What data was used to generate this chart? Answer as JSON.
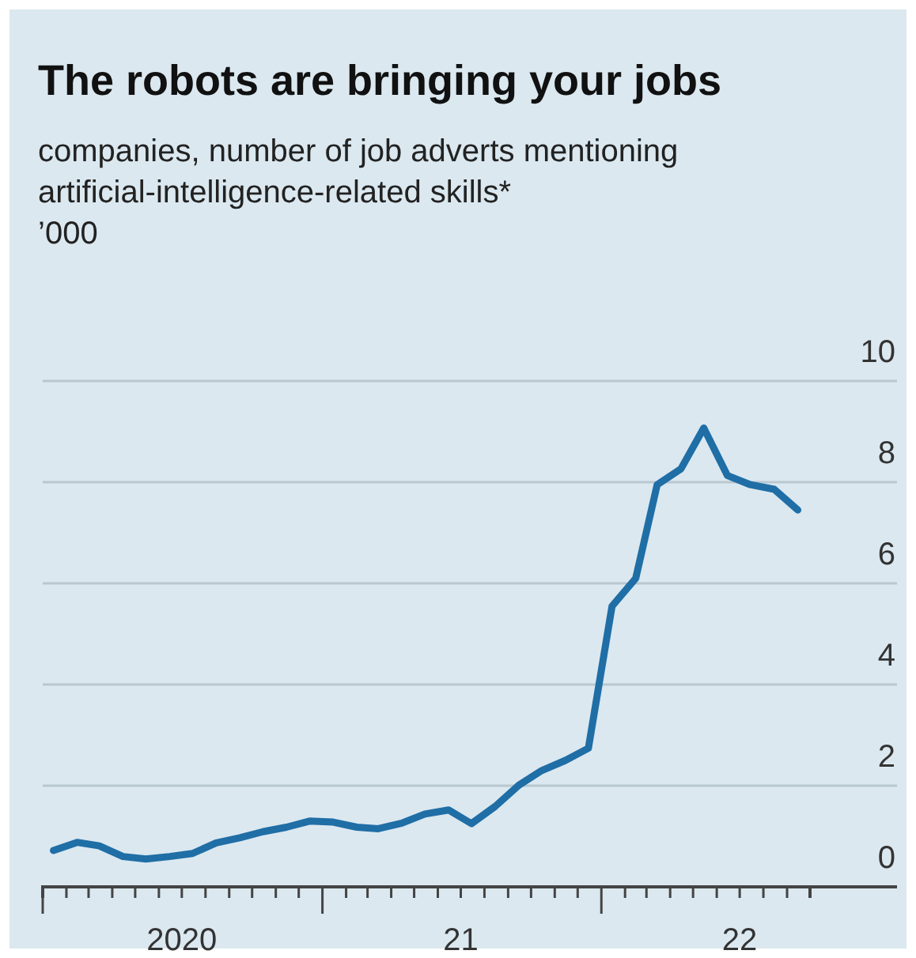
{
  "chart_data": {
    "type": "line",
    "title": "The robots are bringing your jobs",
    "subtitle": "companies, number of job adverts mentioning artificial-intelligence-related skills*",
    "ylabel": "’000",
    "x": [
      "2020-01-15",
      "2020-02-15",
      "2020-03-15",
      "2020-04-15",
      "2020-05-15",
      "2020-06-15",
      "2020-07-15",
      "2020-08-15",
      "2020-09-15",
      "2020-10-15",
      "2020-11-15",
      "2020-12-15",
      "2021-01-15",
      "2021-02-15",
      "2021-03-15",
      "2021-04-15",
      "2021-05-15",
      "2021-06-15",
      "2021-07-15",
      "2021-08-15",
      "2021-09-15",
      "2021-10-15",
      "2021-11-15",
      "2021-12-15",
      "2022-01-15",
      "2022-02-15",
      "2022-03-15",
      "2022-04-15",
      "2022-05-15",
      "2022-06-15",
      "2022-07-15",
      "2022-08-15",
      "2022-09-15"
    ],
    "series": [
      {
        "color": "#1f6ea6",
        "values": [
          0.72,
          0.88,
          0.81,
          0.6,
          0.55,
          0.6,
          0.66,
          0.87,
          0.97,
          1.09,
          1.18,
          1.3,
          1.28,
          1.18,
          1.15,
          1.26,
          1.44,
          1.52,
          1.25,
          1.59,
          2.01,
          2.3,
          2.5,
          2.74,
          5.55,
          6.1,
          7.95,
          8.26,
          9.07,
          8.13,
          7.95,
          7.86,
          7.45
        ]
      }
    ],
    "ylim": [
      0,
      10
    ],
    "yticks": [
      0,
      2,
      4,
      6,
      8,
      10
    ],
    "xlim": [
      "2020-01-01",
      "2022-10-01"
    ],
    "xticks": [
      {
        "value": "2020-01-01",
        "label": null
      },
      {
        "value": "2020-02-01",
        "label": null
      },
      {
        "value": "2020-03-01",
        "label": null
      },
      {
        "value": "2020-04-01",
        "label": null
      },
      {
        "value": "2020-05-01",
        "label": null
      },
      {
        "value": "2020-06-01",
        "label": null
      },
      {
        "value": "2020-07-01",
        "label": "2020"
      },
      {
        "value": "2020-08-01",
        "label": null
      },
      {
        "value": "2020-09-01",
        "label": null
      },
      {
        "value": "2020-10-01",
        "label": null
      },
      {
        "value": "2020-11-01",
        "label": null
      },
      {
        "value": "2020-12-01",
        "label": null
      },
      {
        "value": "2021-01-01",
        "label": null
      },
      {
        "value": "2021-02-01",
        "label": null
      },
      {
        "value": "2021-03-01",
        "label": null
      },
      {
        "value": "2021-04-01",
        "label": null
      },
      {
        "value": "2021-05-01",
        "label": null
      },
      {
        "value": "2021-06-01",
        "label": null
      },
      {
        "value": "2021-07-01",
        "label": "21"
      },
      {
        "value": "2021-08-01",
        "label": null
      },
      {
        "value": "2021-09-01",
        "label": null
      },
      {
        "value": "2021-10-01",
        "label": null
      },
      {
        "value": "2021-11-01",
        "label": null
      },
      {
        "value": "2021-12-01",
        "label": null
      },
      {
        "value": "2022-01-01",
        "label": null
      },
      {
        "value": "2022-02-01",
        "label": null
      },
      {
        "value": "2022-03-01",
        "label": null
      },
      {
        "value": "2022-04-01",
        "label": null
      },
      {
        "value": "2022-05-01",
        "label": null
      },
      {
        "value": "2022-06-01",
        "label": null
      },
      {
        "value": "2022-07-01",
        "label": "22"
      },
      {
        "value": "2022-08-01",
        "label": null
      },
      {
        "value": "2022-09-01",
        "label": null
      },
      {
        "value": "2022-10-01",
        "label": null
      }
    ],
    "grid": "y",
    "marker": "none",
    "line_style": "solid"
  }
}
